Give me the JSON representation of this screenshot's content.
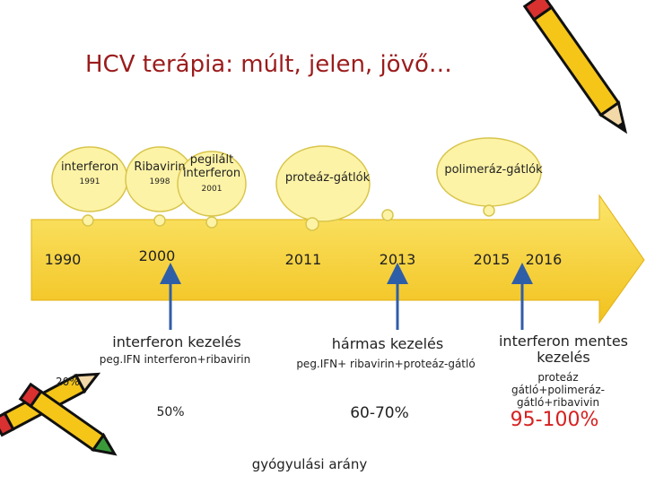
{
  "title": "HCV terápia: múlt, jelen, jövő…",
  "clouds": [
    {
      "label": "interferon",
      "year": "1991"
    },
    {
      "label": "Ribavirin",
      "year": "1998"
    },
    {
      "label": "pegilált interferon",
      "year": "2001"
    },
    {
      "label": "proteáz-gátlók"
    },
    {
      "label": "polimeráz-gátlók"
    }
  ],
  "timeline": [
    "1990",
    "2000",
    "2011",
    "2013",
    "2015",
    "2016"
  ],
  "phases": [
    {
      "title": "interferon kezelés",
      "detail": "peg.IFN interferon+ribavirin"
    },
    {
      "title": "hármas kezelés",
      "detail": "peg.IFN+ ribavirin+proteáz-gátló"
    },
    {
      "title": "interferon mentes kezelés",
      "detail": "proteáz gátló+polimeráz-gátló+ribavivin"
    }
  ],
  "rates": [
    "20%",
    "50%",
    "60-70%",
    "95-100%"
  ],
  "footer": "gyógyulási arány"
}
